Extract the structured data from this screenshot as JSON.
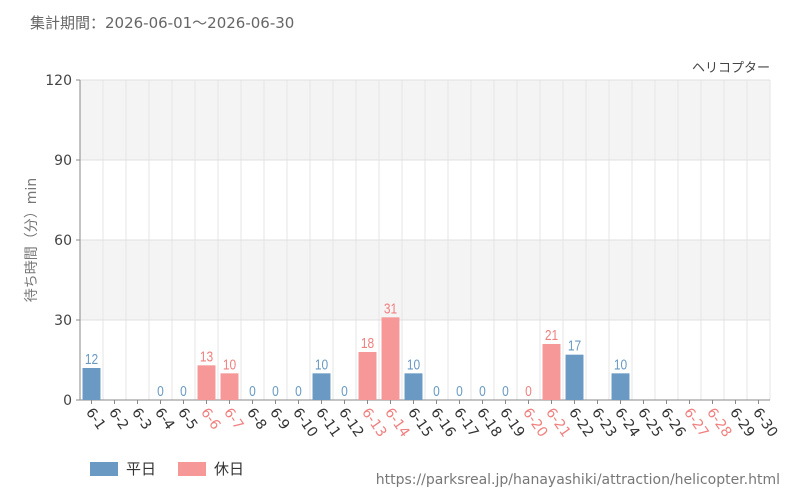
{
  "subtitle": "集計期間：2026-06-01～2026-06-30",
  "footer_url": "https://parksreal.jp/hanayashiki/attraction/helicopter.html",
  "colors": {
    "weekday": "#6a9ac4",
    "holiday": "#f69898",
    "weekday_label": "#6a9ac4",
    "holiday_label": "#f08080"
  },
  "legend": [
    {
      "name": "平日",
      "color": "#6a9ac4"
    },
    {
      "name": "休日",
      "color": "#f69898"
    }
  ],
  "chart_data": {
    "type": "bar",
    "title": "ヘリコプター",
    "ylabel": "待ち時間（分）min",
    "xlabel": "",
    "ylim": [
      0,
      120
    ],
    "yticks": [
      0,
      30,
      60,
      90,
      120
    ],
    "grid": true,
    "legend_position": "bottom-left",
    "categories": [
      "6-1",
      "6-2",
      "6-3",
      "6-4",
      "6-5",
      "6-6",
      "6-7",
      "6-8",
      "6-9",
      "6-10",
      "6-11",
      "6-12",
      "6-13",
      "6-14",
      "6-15",
      "6-16",
      "6-17",
      "6-18",
      "6-19",
      "6-20",
      "6-21",
      "6-22",
      "6-23",
      "6-24",
      "6-25",
      "6-26",
      "6-27",
      "6-28",
      "6-29",
      "6-30"
    ],
    "day_type": [
      "weekday",
      "weekday",
      "weekday",
      "weekday",
      "weekday",
      "holiday",
      "holiday",
      "weekday",
      "weekday",
      "weekday",
      "weekday",
      "weekday",
      "holiday",
      "holiday",
      "weekday",
      "weekday",
      "weekday",
      "weekday",
      "weekday",
      "holiday",
      "holiday",
      "weekday",
      "weekday",
      "weekday",
      "weekday",
      "weekday",
      "holiday",
      "holiday",
      "weekday",
      "weekday"
    ],
    "values": [
      12,
      null,
      null,
      0,
      0,
      13,
      10,
      0,
      0,
      0,
      10,
      0,
      18,
      31,
      10,
      0,
      0,
      0,
      0,
      0,
      21,
      17,
      null,
      10,
      null,
      null,
      null,
      null,
      null,
      null
    ]
  }
}
